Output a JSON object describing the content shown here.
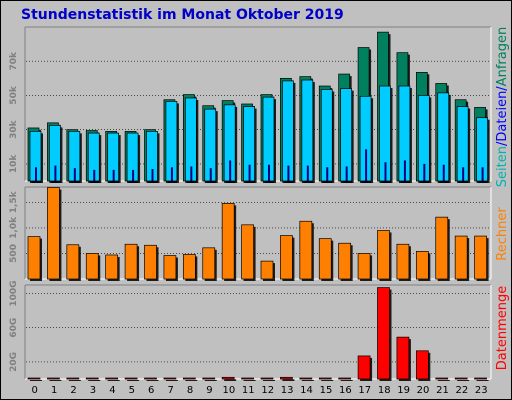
{
  "title": "Stundenstatistik im Monat Oktober 2019",
  "colors": {
    "background": "#C0C0C0",
    "title": "#0000C8",
    "hits": "#00805F",
    "files": "#00CCFF",
    "pages": "#000080",
    "sites": "#FF8000",
    "volume": "#FF0000",
    "label_seiten": "#00B2B2",
    "label_dateien": "#0000FF",
    "label_anfragen": "#00805F",
    "label_rechner": "#FF8000",
    "label_datenmenge": "#FF0000"
  },
  "legend_top": {
    "seiten": "Seiten",
    "sep1": "/",
    "dateien": "Dateien",
    "sep2": "/",
    "anfragen": "Anfragen"
  },
  "legend_mid": "Rechner",
  "legend_bottom": "Datenmenge",
  "chart_data": [
    {
      "type": "bar",
      "panel": "top",
      "categories": [
        "0",
        "1",
        "2",
        "3",
        "4",
        "5",
        "6",
        "7",
        "8",
        "9",
        "10",
        "11",
        "12",
        "13",
        "14",
        "15",
        "16",
        "17",
        "18",
        "19",
        "20",
        "21",
        "22",
        "23"
      ],
      "ylim": [
        0,
        90000
      ],
      "yticks": [
        10000,
        30000,
        50000,
        70000
      ],
      "ytick_labels": [
        "10k",
        "30k",
        "50k",
        "70k"
      ],
      "grid": true,
      "series": [
        {
          "name": "Anfragen",
          "values": [
            31000,
            34000,
            30000,
            29500,
            29000,
            29000,
            30000,
            47500,
            50500,
            44000,
            47000,
            45000,
            50500,
            60000,
            61000,
            55500,
            62500,
            78000,
            87000,
            75000,
            63500,
            57000,
            47500,
            43000
          ]
        },
        {
          "name": "Dateien",
          "values": [
            29000,
            32500,
            29000,
            28000,
            28000,
            28000,
            29000,
            46500,
            48500,
            42000,
            44500,
            43500,
            49000,
            58500,
            59000,
            53500,
            54000,
            49500,
            55500,
            55500,
            50000,
            51500,
            43500,
            37000
          ]
        },
        {
          "name": "Seiten",
          "values": [
            8000,
            9000,
            7500,
            6500,
            6500,
            6500,
            7000,
            8000,
            8500,
            7500,
            12000,
            9500,
            9500,
            9000,
            9000,
            8000,
            8500,
            18500,
            11000,
            12000,
            10000,
            9500,
            8000,
            8000
          ]
        }
      ]
    },
    {
      "type": "bar",
      "panel": "middle",
      "categories": [
        "0",
        "1",
        "2",
        "3",
        "4",
        "5",
        "6",
        "7",
        "8",
        "9",
        "10",
        "11",
        "12",
        "13",
        "14",
        "15",
        "16",
        "17",
        "18",
        "19",
        "20",
        "21",
        "22",
        "23"
      ],
      "ylim": [
        0,
        1800
      ],
      "yticks": [
        500,
        1000,
        1500
      ],
      "ytick_labels": [
        "500",
        "1,0k",
        "1,5k"
      ],
      "grid": true,
      "series": [
        {
          "name": "Rechner",
          "values": [
            830,
            1790,
            670,
            500,
            470,
            680,
            660,
            460,
            480,
            610,
            1480,
            1060,
            350,
            850,
            1130,
            790,
            700,
            500,
            950,
            680,
            540,
            1210,
            840,
            840
          ]
        }
      ]
    },
    {
      "type": "bar",
      "panel": "bottom",
      "categories": [
        "0",
        "1",
        "2",
        "3",
        "4",
        "5",
        "6",
        "7",
        "8",
        "9",
        "10",
        "11",
        "12",
        "13",
        "14",
        "15",
        "16",
        "17",
        "18",
        "19",
        "20",
        "21",
        "22",
        "23"
      ],
      "ylim": [
        0,
        110
      ],
      "yticks": [
        20,
        60,
        100
      ],
      "ytick_labels": [
        "20G",
        "60G",
        "100G"
      ],
      "grid": true,
      "series": [
        {
          "name": "Datenmenge",
          "values": [
            1,
            1,
            1,
            1,
            1,
            1,
            1,
            1,
            1,
            1,
            2,
            1,
            1,
            2,
            1,
            1,
            1,
            27,
            107,
            49,
            33,
            1,
            1,
            1
          ]
        }
      ]
    }
  ]
}
